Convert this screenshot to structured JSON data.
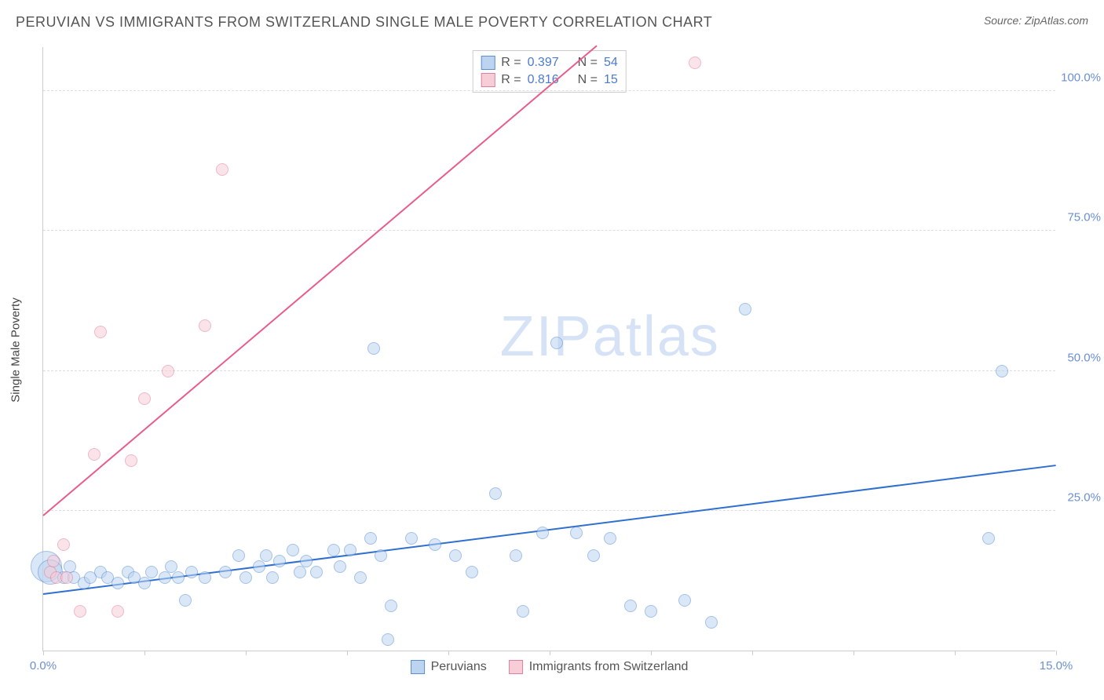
{
  "header": {
    "title": "PERUVIAN VS IMMIGRANTS FROM SWITZERLAND SINGLE MALE POVERTY CORRELATION CHART",
    "source": "Source: ZipAtlas.com"
  },
  "chart": {
    "type": "scatter",
    "y_axis_title": "Single Male Poverty",
    "xlim": [
      0,
      15
    ],
    "ylim": [
      0,
      108
    ],
    "x_ticks": [
      0,
      1.5,
      3.0,
      4.5,
      6.0,
      7.5,
      9.0,
      10.5,
      12.0,
      13.5,
      15.0
    ],
    "x_tick_labels": {
      "0": "0.0%",
      "15": "15.0%"
    },
    "y_ticks": [
      25,
      50,
      75,
      100
    ],
    "y_tick_labels": {
      "25": "25.0%",
      "50": "50.0%",
      "75": "75.0%",
      "100": "100.0%"
    },
    "grid_color": "#dddddd",
    "axis_color": "#cccccc",
    "background_color": "#ffffff",
    "tick_label_color": "#6b8fd4",
    "tick_label_fontsize": 15,
    "watermark": "ZIPatlas",
    "watermark_color": "#d6e2f5",
    "series": [
      {
        "name": "Peruvians",
        "fill_color": "#bcd4f0",
        "stroke_color": "#5a8fd6",
        "marker_radius": 8,
        "fill_opacity": 0.55,
        "line_color": "#2f6fd0",
        "line_width": 2,
        "r_value": "0.397",
        "n_value": "54",
        "trend": {
          "x1": 0,
          "y1": 10,
          "x2": 15,
          "y2": 33
        },
        "points": [
          {
            "x": 0.05,
            "y": 15,
            "r": 20
          },
          {
            "x": 0.1,
            "y": 14,
            "r": 16
          },
          {
            "x": 0.3,
            "y": 13
          },
          {
            "x": 0.4,
            "y": 15
          },
          {
            "x": 0.45,
            "y": 13
          },
          {
            "x": 0.6,
            "y": 12
          },
          {
            "x": 0.7,
            "y": 13
          },
          {
            "x": 0.85,
            "y": 14
          },
          {
            "x": 0.95,
            "y": 13
          },
          {
            "x": 1.1,
            "y": 12
          },
          {
            "x": 1.25,
            "y": 14
          },
          {
            "x": 1.35,
            "y": 13
          },
          {
            "x": 1.5,
            "y": 12
          },
          {
            "x": 1.6,
            "y": 14
          },
          {
            "x": 1.8,
            "y": 13
          },
          {
            "x": 1.9,
            "y": 15
          },
          {
            "x": 2.0,
            "y": 13
          },
          {
            "x": 2.1,
            "y": 9
          },
          {
            "x": 2.2,
            "y": 14
          },
          {
            "x": 2.4,
            "y": 13
          },
          {
            "x": 2.7,
            "y": 14
          },
          {
            "x": 2.9,
            "y": 17
          },
          {
            "x": 3.0,
            "y": 13
          },
          {
            "x": 3.2,
            "y": 15
          },
          {
            "x": 3.3,
            "y": 17
          },
          {
            "x": 3.4,
            "y": 13
          },
          {
            "x": 3.5,
            "y": 16
          },
          {
            "x": 3.7,
            "y": 18
          },
          {
            "x": 3.8,
            "y": 14
          },
          {
            "x": 3.9,
            "y": 16
          },
          {
            "x": 4.05,
            "y": 14
          },
          {
            "x": 4.3,
            "y": 18
          },
          {
            "x": 4.4,
            "y": 15
          },
          {
            "x": 4.55,
            "y": 18
          },
          {
            "x": 4.7,
            "y": 13
          },
          {
            "x": 4.85,
            "y": 20
          },
          {
            "x": 4.9,
            "y": 54
          },
          {
            "x": 5.0,
            "y": 17
          },
          {
            "x": 5.1,
            "y": 2
          },
          {
            "x": 5.15,
            "y": 8
          },
          {
            "x": 5.45,
            "y": 20
          },
          {
            "x": 5.8,
            "y": 19
          },
          {
            "x": 6.1,
            "y": 17
          },
          {
            "x": 6.35,
            "y": 14
          },
          {
            "x": 6.7,
            "y": 28
          },
          {
            "x": 7.0,
            "y": 17
          },
          {
            "x": 7.1,
            "y": 7
          },
          {
            "x": 7.4,
            "y": 21
          },
          {
            "x": 7.6,
            "y": 55
          },
          {
            "x": 7.9,
            "y": 21
          },
          {
            "x": 8.15,
            "y": 17
          },
          {
            "x": 8.4,
            "y": 20
          },
          {
            "x": 8.7,
            "y": 8
          },
          {
            "x": 9.0,
            "y": 7
          },
          {
            "x": 9.5,
            "y": 9
          },
          {
            "x": 9.9,
            "y": 5
          },
          {
            "x": 10.4,
            "y": 61
          },
          {
            "x": 14.0,
            "y": 20
          },
          {
            "x": 14.2,
            "y": 50
          }
        ]
      },
      {
        "name": "Immigrants from Switzerland",
        "fill_color": "#f7cdd8",
        "stroke_color": "#e07fa0",
        "marker_radius": 8,
        "fill_opacity": 0.55,
        "line_color": "#e85d8a",
        "line_width": 2,
        "r_value": "0.816",
        "n_value": "15",
        "trend": {
          "x1": 0,
          "y1": 24,
          "x2": 8.2,
          "y2": 108
        },
        "points": [
          {
            "x": 0.1,
            "y": 14
          },
          {
            "x": 0.15,
            "y": 16
          },
          {
            "x": 0.2,
            "y": 13
          },
          {
            "x": 0.3,
            "y": 19
          },
          {
            "x": 0.35,
            "y": 13
          },
          {
            "x": 0.55,
            "y": 7
          },
          {
            "x": 0.75,
            "y": 35
          },
          {
            "x": 0.85,
            "y": 57
          },
          {
            "x": 1.1,
            "y": 7
          },
          {
            "x": 1.3,
            "y": 34
          },
          {
            "x": 1.5,
            "y": 45
          },
          {
            "x": 1.85,
            "y": 50
          },
          {
            "x": 2.4,
            "y": 58
          },
          {
            "x": 2.65,
            "y": 86
          },
          {
            "x": 9.65,
            "y": 105
          }
        ]
      }
    ],
    "stats_legend": {
      "r_label": "R =",
      "n_label": "N ="
    },
    "bottom_legend": {
      "items": [
        "Peruvians",
        "Immigrants from Switzerland"
      ]
    }
  }
}
